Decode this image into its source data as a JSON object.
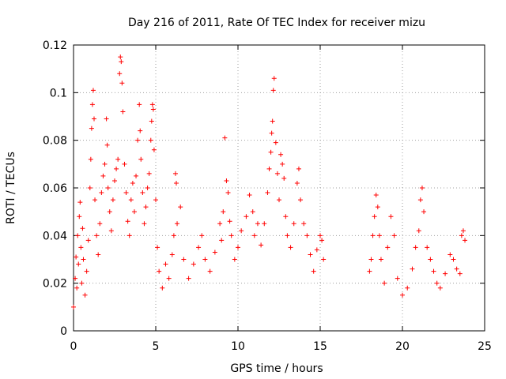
{
  "chart_data": {
    "type": "scatter",
    "title": "Day 216 of 2011, Rate Of TEC Index for receiver mizu",
    "xlabel": "GPS time / hours",
    "ylabel": "ROTI / TECUs",
    "xlim": [
      0,
      25
    ],
    "ylim": [
      0,
      0.12
    ],
    "xticks": [
      "0",
      "5",
      "10",
      "15",
      "20",
      "25"
    ],
    "yticks": [
      "0",
      "0.02",
      "0.04",
      "0.06",
      "0.08",
      "0.1",
      "0.12"
    ],
    "grid": true,
    "marker": "plus",
    "color": "#ff0000",
    "points": [
      [
        0.0,
        0.01
      ],
      [
        0.1,
        0.022
      ],
      [
        0.15,
        0.031
      ],
      [
        0.2,
        0.018
      ],
      [
        0.25,
        0.04
      ],
      [
        0.3,
        0.028
      ],
      [
        0.35,
        0.048
      ],
      [
        0.4,
        0.054
      ],
      [
        0.45,
        0.035
      ],
      [
        0.5,
        0.02
      ],
      [
        0.55,
        0.043
      ],
      [
        0.6,
        0.03
      ],
      [
        0.7,
        0.015
      ],
      [
        0.8,
        0.025
      ],
      [
        0.9,
        0.038
      ],
      [
        1.0,
        0.06
      ],
      [
        1.05,
        0.072
      ],
      [
        1.1,
        0.085
      ],
      [
        1.15,
        0.095
      ],
      [
        1.2,
        0.101
      ],
      [
        1.25,
        0.089
      ],
      [
        1.3,
        0.055
      ],
      [
        1.4,
        0.04
      ],
      [
        1.5,
        0.032
      ],
      [
        1.6,
        0.045
      ],
      [
        1.7,
        0.058
      ],
      [
        1.8,
        0.065
      ],
      [
        1.9,
        0.07
      ],
      [
        2.0,
        0.089
      ],
      [
        2.05,
        0.078
      ],
      [
        2.1,
        0.06
      ],
      [
        2.2,
        0.05
      ],
      [
        2.3,
        0.042
      ],
      [
        2.4,
        0.055
      ],
      [
        2.5,
        0.063
      ],
      [
        2.6,
        0.068
      ],
      [
        2.7,
        0.072
      ],
      [
        2.8,
        0.108
      ],
      [
        2.85,
        0.115
      ],
      [
        2.9,
        0.113
      ],
      [
        2.95,
        0.104
      ],
      [
        3.0,
        0.092
      ],
      [
        3.1,
        0.07
      ],
      [
        3.2,
        0.058
      ],
      [
        3.3,
        0.046
      ],
      [
        3.4,
        0.04
      ],
      [
        3.5,
        0.055
      ],
      [
        3.6,
        0.062
      ],
      [
        3.7,
        0.05
      ],
      [
        3.8,
        0.065
      ],
      [
        3.9,
        0.08
      ],
      [
        4.0,
        0.095
      ],
      [
        4.05,
        0.084
      ],
      [
        4.1,
        0.072
      ],
      [
        4.2,
        0.058
      ],
      [
        4.3,
        0.045
      ],
      [
        4.4,
        0.052
      ],
      [
        4.5,
        0.06
      ],
      [
        4.6,
        0.066
      ],
      [
        4.7,
        0.08
      ],
      [
        4.75,
        0.088
      ],
      [
        4.8,
        0.095
      ],
      [
        4.85,
        0.093
      ],
      [
        4.9,
        0.076
      ],
      [
        5.0,
        0.055
      ],
      [
        5.1,
        0.035
      ],
      [
        5.2,
        0.025
      ],
      [
        5.4,
        0.018
      ],
      [
        5.6,
        0.028
      ],
      [
        5.8,
        0.022
      ],
      [
        6.0,
        0.032
      ],
      [
        6.1,
        0.04
      ],
      [
        6.2,
        0.066
      ],
      [
        6.25,
        0.062
      ],
      [
        6.3,
        0.045
      ],
      [
        6.5,
        0.052
      ],
      [
        6.7,
        0.03
      ],
      [
        7.0,
        0.022
      ],
      [
        7.3,
        0.028
      ],
      [
        7.6,
        0.035
      ],
      [
        7.8,
        0.04
      ],
      [
        8.0,
        0.03
      ],
      [
        8.3,
        0.025
      ],
      [
        8.6,
        0.033
      ],
      [
        8.9,
        0.045
      ],
      [
        9.0,
        0.038
      ],
      [
        9.1,
        0.05
      ],
      [
        9.2,
        0.081
      ],
      [
        9.3,
        0.063
      ],
      [
        9.4,
        0.058
      ],
      [
        9.5,
        0.046
      ],
      [
        9.6,
        0.04
      ],
      [
        9.8,
        0.03
      ],
      [
        10.0,
        0.035
      ],
      [
        10.2,
        0.042
      ],
      [
        10.5,
        0.048
      ],
      [
        10.7,
        0.057
      ],
      [
        10.9,
        0.05
      ],
      [
        11.0,
        0.04
      ],
      [
        11.2,
        0.045
      ],
      [
        11.4,
        0.036
      ],
      [
        11.6,
        0.045
      ],
      [
        11.8,
        0.058
      ],
      [
        11.9,
        0.068
      ],
      [
        12.0,
        0.075
      ],
      [
        12.05,
        0.083
      ],
      [
        12.1,
        0.088
      ],
      [
        12.15,
        0.101
      ],
      [
        12.2,
        0.106
      ],
      [
        12.3,
        0.079
      ],
      [
        12.4,
        0.066
      ],
      [
        12.5,
        0.055
      ],
      [
        12.6,
        0.074
      ],
      [
        12.7,
        0.07
      ],
      [
        12.8,
        0.064
      ],
      [
        12.9,
        0.048
      ],
      [
        13.0,
        0.04
      ],
      [
        13.2,
        0.035
      ],
      [
        13.4,
        0.045
      ],
      [
        13.6,
        0.062
      ],
      [
        13.7,
        0.068
      ],
      [
        13.8,
        0.055
      ],
      [
        14.0,
        0.045
      ],
      [
        14.2,
        0.04
      ],
      [
        14.4,
        0.032
      ],
      [
        14.6,
        0.025
      ],
      [
        14.8,
        0.034
      ],
      [
        15.0,
        0.04
      ],
      [
        15.1,
        0.038
      ],
      [
        15.2,
        0.03
      ],
      [
        18.0,
        0.025
      ],
      [
        18.1,
        0.03
      ],
      [
        18.2,
        0.04
      ],
      [
        18.3,
        0.048
      ],
      [
        18.4,
        0.057
      ],
      [
        18.5,
        0.052
      ],
      [
        18.6,
        0.04
      ],
      [
        18.7,
        0.03
      ],
      [
        18.9,
        0.02
      ],
      [
        19.1,
        0.035
      ],
      [
        19.3,
        0.048
      ],
      [
        19.5,
        0.04
      ],
      [
        19.7,
        0.022
      ],
      [
        20.0,
        0.015
      ],
      [
        20.3,
        0.018
      ],
      [
        20.6,
        0.026
      ],
      [
        20.8,
        0.035
      ],
      [
        21.0,
        0.042
      ],
      [
        21.1,
        0.055
      ],
      [
        21.2,
        0.06
      ],
      [
        21.3,
        0.05
      ],
      [
        21.5,
        0.035
      ],
      [
        21.7,
        0.03
      ],
      [
        21.9,
        0.025
      ],
      [
        22.1,
        0.02
      ],
      [
        22.3,
        0.018
      ],
      [
        22.6,
        0.024
      ],
      [
        22.9,
        0.032
      ],
      [
        23.1,
        0.03
      ],
      [
        23.3,
        0.026
      ],
      [
        23.5,
        0.024
      ],
      [
        23.6,
        0.04
      ],
      [
        23.7,
        0.042
      ],
      [
        23.8,
        0.038
      ]
    ]
  }
}
